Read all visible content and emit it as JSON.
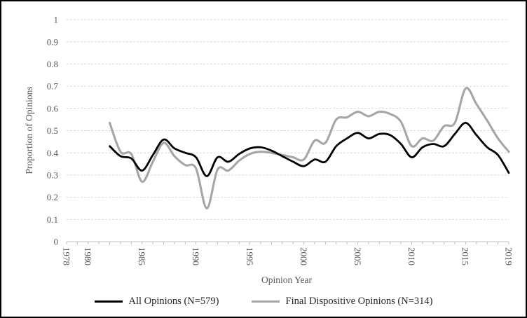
{
  "figure": {
    "background": "#ffffff",
    "border_color": "#000000"
  },
  "styles": {
    "grid_color": "#d9d9d9",
    "axis_color": "#bfbfbf",
    "tick_label_color": "#595959",
    "axis_title_color": "#595959",
    "legend_text_color": "#262626"
  },
  "chart_data": {
    "type": "line",
    "title": "",
    "xlabel": "Opinion Year",
    "ylabel": "Proportion of Opinions",
    "xlim": [
      1978,
      2019
    ],
    "ylim": [
      0,
      1
    ],
    "grid": "horizontal-dashed",
    "legend_position": "bottom",
    "y_ticks": [
      0,
      0.1,
      0.2,
      0.3,
      0.4,
      0.5,
      0.6,
      0.7,
      0.8,
      0.9,
      1
    ],
    "y_tick_labels": [
      "0",
      "0.1",
      "0.2",
      "0.3",
      "0.4",
      "0.5",
      "0.6",
      "0.7",
      "0.8",
      "0.9",
      "1"
    ],
    "x_major_ticks": [
      1978,
      1980,
      1985,
      1990,
      1995,
      2000,
      2005,
      2010,
      2015,
      2019
    ],
    "x_major_tick_labels": [
      "1978",
      "1980",
      "1985",
      "1990",
      "1995",
      "2000",
      "2005",
      "2010",
      "2015",
      "2019"
    ],
    "x_minor_tick_interval": 1,
    "x": [
      1982,
      1983,
      1984,
      1985,
      1986,
      1987,
      1988,
      1989,
      1990,
      1991,
      1992,
      1993,
      1994,
      1995,
      1996,
      1997,
      1998,
      1999,
      2000,
      2001,
      2002,
      2003,
      2004,
      2005,
      2006,
      2007,
      2008,
      2009,
      2010,
      2011,
      2012,
      2013,
      2014,
      2015,
      2016,
      2017,
      2018,
      2019
    ],
    "series": [
      {
        "id": "final-dispositive-opinions",
        "name": "Final Dispositive Opinions (N=314)",
        "color": "#a6a6a6",
        "stroke_width": 3.1,
        "values": [
          0.535,
          0.405,
          0.395,
          0.27,
          0.36,
          0.445,
          0.385,
          0.345,
          0.33,
          0.15,
          0.325,
          0.32,
          0.365,
          0.395,
          0.405,
          0.4,
          0.39,
          0.38,
          0.37,
          0.455,
          0.445,
          0.55,
          0.56,
          0.585,
          0.565,
          0.585,
          0.575,
          0.54,
          0.43,
          0.465,
          0.455,
          0.52,
          0.535,
          0.69,
          0.62,
          0.545,
          0.465,
          0.405
        ]
      },
      {
        "id": "all-opinions",
        "name": "All Opinions (N=579)",
        "color": "#000000",
        "stroke_width": 2.8,
        "values": [
          0.43,
          0.385,
          0.375,
          0.32,
          0.39,
          0.46,
          0.42,
          0.4,
          0.38,
          0.295,
          0.38,
          0.36,
          0.395,
          0.42,
          0.425,
          0.41,
          0.385,
          0.36,
          0.34,
          0.37,
          0.36,
          0.43,
          0.465,
          0.49,
          0.465,
          0.485,
          0.48,
          0.44,
          0.38,
          0.425,
          0.44,
          0.43,
          0.485,
          0.535,
          0.48,
          0.425,
          0.39,
          0.31
        ]
      }
    ],
    "legend_order": [
      "all-opinions",
      "final-dispositive-opinions"
    ]
  }
}
